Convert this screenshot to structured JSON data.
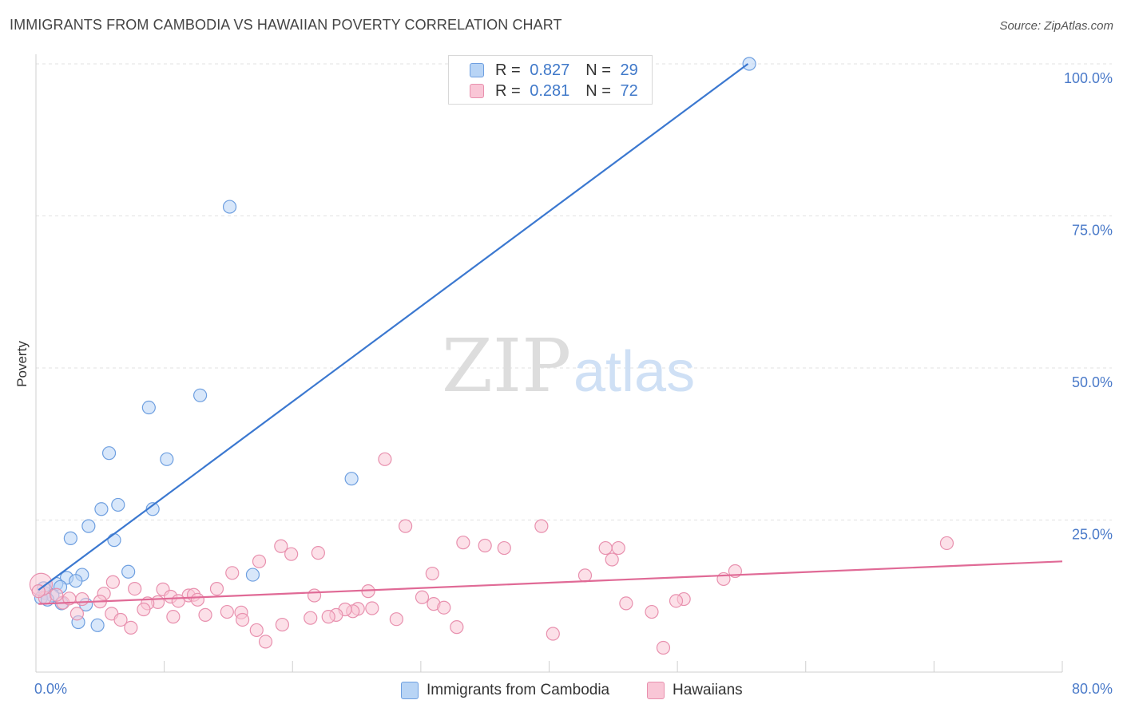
{
  "title": "IMMIGRANTS FROM CAMBODIA VS HAWAIIAN POVERTY CORRELATION CHART",
  "source": "Source: ZipAtlas.com",
  "watermark": {
    "zip": "ZIP",
    "atlas": "atlas"
  },
  "legend": {
    "r_label": "R =",
    "n_label": "N =",
    "series": [
      {
        "r": "0.827",
        "n": "29",
        "fill": "#b8d4f5",
        "stroke": "#6e9fe0"
      },
      {
        "r": "0.281",
        "n": "72",
        "fill": "#f9c6d6",
        "stroke": "#e890ae"
      }
    ]
  },
  "chart_data": {
    "type": "scatter",
    "title": "IMMIGRANTS FROM CAMBODIA VS HAWAIIAN POVERTY CORRELATION CHART",
    "xlabel": "",
    "ylabel": "Poverty",
    "xlim": [
      0,
      80
    ],
    "ylim": [
      0,
      105
    ],
    "x_tick_labels": {
      "min": "0.0%",
      "max": "80.0%"
    },
    "y_ticks": [
      {
        "value": 25,
        "label": "25.0%"
      },
      {
        "value": 50,
        "label": "50.0%"
      },
      {
        "value": 75,
        "label": "75.0%"
      },
      {
        "value": 100,
        "label": "100.0%"
      }
    ],
    "grid": true,
    "series": [
      {
        "name": "Immigrants from Cambodia",
        "color": "#6e9fe0",
        "fill": "#b8d4f5",
        "line_color": "#3b78d0",
        "trend": {
          "x0": 0.2,
          "y0": 13.5,
          "x1": 55.5,
          "y1": 100.0
        },
        "points": [
          [
            55.6,
            100.0
          ],
          [
            15.1,
            76.5
          ],
          [
            12.8,
            45.5
          ],
          [
            8.8,
            43.5
          ],
          [
            5.7,
            36.0
          ],
          [
            10.2,
            35.0
          ],
          [
            24.6,
            31.8
          ],
          [
            6.4,
            27.5
          ],
          [
            9.1,
            26.8
          ],
          [
            5.1,
            26.8
          ],
          [
            4.1,
            24.0
          ],
          [
            2.7,
            22.0
          ],
          [
            6.1,
            21.7
          ],
          [
            7.2,
            16.5
          ],
          [
            16.9,
            16.0
          ],
          [
            3.6,
            16.0
          ],
          [
            2.4,
            15.5
          ],
          [
            3.1,
            15.0
          ],
          [
            1.6,
            14.5
          ],
          [
            1.9,
            14.0
          ],
          [
            0.7,
            13.0
          ],
          [
            1.3,
            12.6
          ],
          [
            0.4,
            12.2
          ],
          [
            0.9,
            11.9
          ],
          [
            2.0,
            11.3
          ],
          [
            3.9,
            11.1
          ],
          [
            0.6,
            13.8
          ],
          [
            3.3,
            8.2
          ],
          [
            4.8,
            7.7
          ]
        ]
      },
      {
        "name": "Hawaiians",
        "color": "#e890ae",
        "fill": "#f9c6d6",
        "line_color": "#e06a96",
        "trend": {
          "x0": 0.2,
          "y0": 11.2,
          "x1": 80.0,
          "y1": 18.2
        },
        "points": [
          [
            27.2,
            35.0
          ],
          [
            28.8,
            24.0
          ],
          [
            39.4,
            24.0
          ],
          [
            71.0,
            21.2
          ],
          [
            33.3,
            21.3
          ],
          [
            35.0,
            20.8
          ],
          [
            36.5,
            20.4
          ],
          [
            19.1,
            20.7
          ],
          [
            44.4,
            20.4
          ],
          [
            22.0,
            19.6
          ],
          [
            19.9,
            19.4
          ],
          [
            44.9,
            18.5
          ],
          [
            17.4,
            18.2
          ],
          [
            15.3,
            16.3
          ],
          [
            30.9,
            16.2
          ],
          [
            42.8,
            15.9
          ],
          [
            54.5,
            16.6
          ],
          [
            53.6,
            15.3
          ],
          [
            6.0,
            14.8
          ],
          [
            7.7,
            13.7
          ],
          [
            9.9,
            13.6
          ],
          [
            14.1,
            13.7
          ],
          [
            25.9,
            13.3
          ],
          [
            5.3,
            12.9
          ],
          [
            10.5,
            12.4
          ],
          [
            11.9,
            12.6
          ],
          [
            12.3,
            12.7
          ],
          [
            21.7,
            12.6
          ],
          [
            30.1,
            12.3
          ],
          [
            3.6,
            12.0
          ],
          [
            5.0,
            11.6
          ],
          [
            9.5,
            11.5
          ],
          [
            11.1,
            11.7
          ],
          [
            12.6,
            11.9
          ],
          [
            8.7,
            11.3
          ],
          [
            0.7,
            12.2
          ],
          [
            2.1,
            11.4
          ],
          [
            0.4,
            14.4
          ],
          [
            31.0,
            11.2
          ],
          [
            31.8,
            10.6
          ],
          [
            50.5,
            12.0
          ],
          [
            49.9,
            11.7
          ],
          [
            46.0,
            11.3
          ],
          [
            45.4,
            20.4
          ],
          [
            26.2,
            10.5
          ],
          [
            25.1,
            10.4
          ],
          [
            24.7,
            10.0
          ],
          [
            24.1,
            10.3
          ],
          [
            23.4,
            9.4
          ],
          [
            22.8,
            9.1
          ],
          [
            8.4,
            10.3
          ],
          [
            5.9,
            9.6
          ],
          [
            3.2,
            9.6
          ],
          [
            13.2,
            9.4
          ],
          [
            14.9,
            9.9
          ],
          [
            16.0,
            9.8
          ],
          [
            10.7,
            9.1
          ],
          [
            21.4,
            8.9
          ],
          [
            16.1,
            8.6
          ],
          [
            6.6,
            8.6
          ],
          [
            28.1,
            8.7
          ],
          [
            48.0,
            9.9
          ],
          [
            19.2,
            7.8
          ],
          [
            7.4,
            7.3
          ],
          [
            17.2,
            6.9
          ],
          [
            32.8,
            7.4
          ],
          [
            40.3,
            6.3
          ],
          [
            17.9,
            5.0
          ],
          [
            48.9,
            4.0
          ],
          [
            1.6,
            12.7
          ],
          [
            2.6,
            12.1
          ],
          [
            0.2,
            13.3
          ]
        ]
      }
    ]
  },
  "bottom_legend": [
    "Immigrants from Cambodia",
    "Hawaiians"
  ]
}
